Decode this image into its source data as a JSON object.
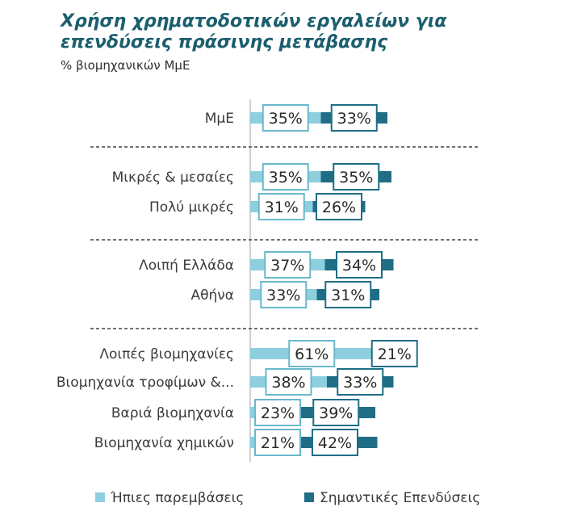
{
  "chart_data": {
    "type": "bar",
    "title": "Χρήση χρηματοδοτικών εργαλείων για επενδύσεις πράσινης μετάβασης",
    "subtitle": "% βιομηχανικών ΜμΕ",
    "categories": [
      "ΜμΕ",
      "Μικρές & μεσαίες",
      "Πολύ μικρές",
      "Λοιπή Ελλάδα",
      "Αθήνα",
      "Λοιπές βιομηχανίες",
      "Βιομηχανία τροφίμων &...",
      "Βαριά βιομηχανία",
      "Βιομηχανία χημικών"
    ],
    "groups": [
      [
        0
      ],
      [
        1,
        2
      ],
      [
        3,
        4
      ],
      [
        5,
        6,
        7,
        8
      ]
    ],
    "series": [
      {
        "name": "Ήπιες παρεμβάσεις",
        "values": [
          35,
          35,
          31,
          37,
          33,
          61,
          38,
          23,
          21
        ],
        "labels": [
          "35%",
          "35%",
          "31%",
          "37%",
          "33%",
          "61%",
          "38%",
          "23%",
          "21%"
        ],
        "color": "#8ecfdf",
        "border": "#6ab8cc"
      },
      {
        "name": "Σημαντικές Επενδύσεις",
        "values": [
          33,
          35,
          26,
          34,
          31,
          21,
          33,
          39,
          42
        ],
        "labels": [
          "33%",
          "35%",
          "26%",
          "34%",
          "31%",
          "21%",
          "33%",
          "39%",
          "42%"
        ],
        "color": "#1f6e86",
        "border": "#1f6e86"
      }
    ],
    "stacked": true,
    "legend_position": "bottom"
  }
}
